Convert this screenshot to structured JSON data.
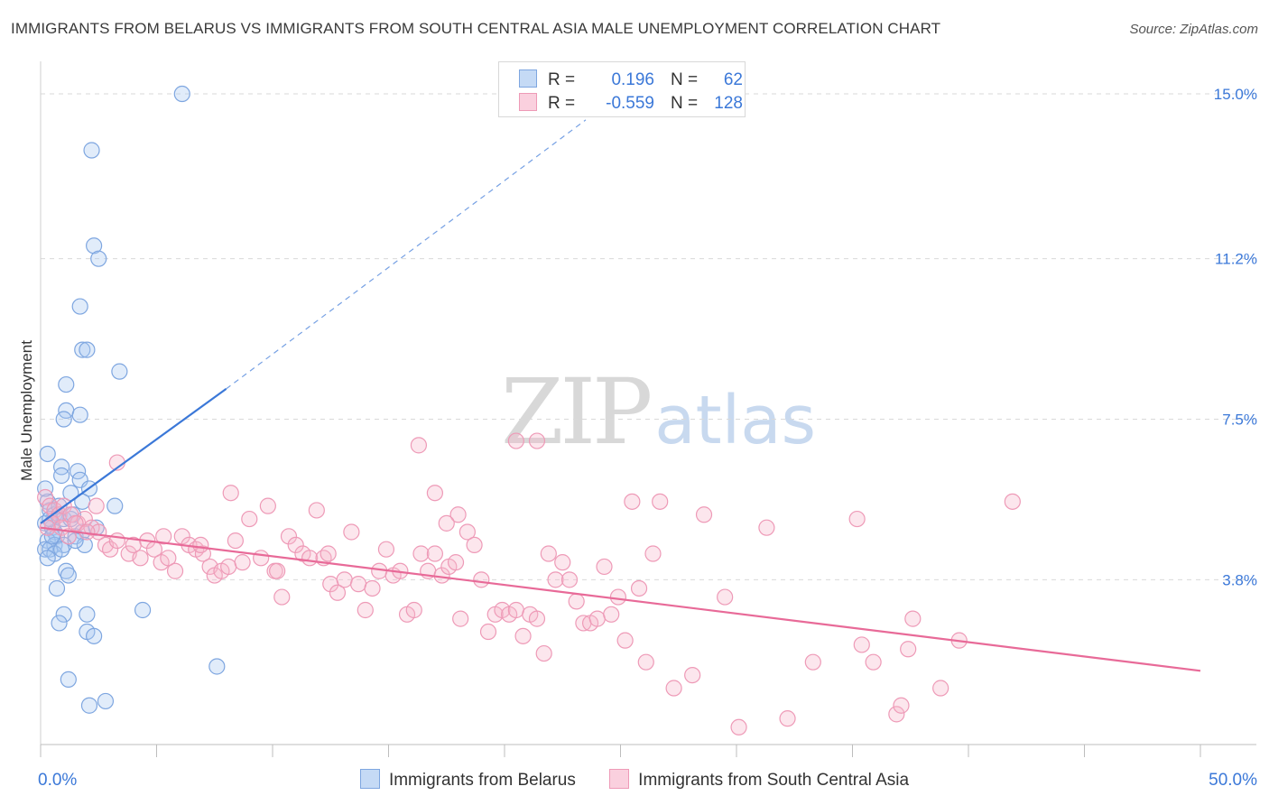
{
  "title": "IMMIGRANTS FROM BELARUS VS IMMIGRANTS FROM SOUTH CENTRAL ASIA MALE UNEMPLOYMENT CORRELATION CHART",
  "source": "Source: ZipAtlas.com",
  "watermark": {
    "zip": "ZIP",
    "atlas": "atlas"
  },
  "legend_top": [
    {
      "r_label": "R =",
      "r_value": "0.196",
      "n_label": "N =",
      "n_value": "62"
    },
    {
      "r_label": "R =",
      "r_value": "-0.559",
      "n_label": "N =",
      "n_value": "128"
    }
  ],
  "legend_bottom": [
    "Immigrants from Belarus",
    "Immigrants from South Central Asia"
  ],
  "colors": {
    "blue": "#3b78d8",
    "blue_fill": "#aac8f0",
    "pink": "#e86a98",
    "pink_fill": "#f7b8cc",
    "grid": "#d9d9d9",
    "tick_label": "#3b78d8"
  },
  "chart_data": {
    "type": "scatter",
    "title": "IMMIGRANTS FROM BELARUS VS IMMIGRANTS FROM SOUTH CENTRAL ASIA MALE UNEMPLOYMENT CORRELATION CHART",
    "xlabel": "",
    "ylabel": "Male Unemployment",
    "xlim": [
      0,
      50
    ],
    "ylim": [
      0,
      15.5
    ],
    "x_tick_labels": [
      "0.0%",
      "50.0%"
    ],
    "y_ticks": [
      3.8,
      7.5,
      11.2,
      15.0
    ],
    "y_tick_labels": [
      "3.8%",
      "7.5%",
      "11.2%",
      "15.0%"
    ],
    "series": [
      {
        "name": "Immigrants from Belarus",
        "color": "blue",
        "r": 0.196,
        "n": 62,
        "trend": {
          "solid": [
            [
              0,
              5.1
            ],
            [
              8,
              8.2
            ]
          ],
          "dashed": [
            [
              8,
              8.2
            ],
            [
              23.5,
              14.4
            ]
          ]
        },
        "points": [
          [
            6.1,
            15.0
          ],
          [
            2.2,
            13.7
          ],
          [
            2.3,
            11.5
          ],
          [
            2.5,
            11.2
          ],
          [
            1.7,
            10.1
          ],
          [
            1.8,
            9.1
          ],
          [
            2.0,
            9.1
          ],
          [
            3.4,
            8.6
          ],
          [
            1.1,
            8.3
          ],
          [
            1.1,
            7.7
          ],
          [
            1.0,
            7.5
          ],
          [
            1.7,
            7.6
          ],
          [
            0.3,
            6.7
          ],
          [
            0.9,
            6.4
          ],
          [
            0.9,
            6.2
          ],
          [
            1.6,
            6.3
          ],
          [
            1.7,
            6.1
          ],
          [
            2.1,
            5.9
          ],
          [
            1.3,
            5.8
          ],
          [
            1.8,
            5.6
          ],
          [
            3.2,
            5.5
          ],
          [
            0.3,
            5.6
          ],
          [
            0.4,
            5.4
          ],
          [
            0.6,
            5.3
          ],
          [
            0.8,
            5.3
          ],
          [
            1.0,
            5.2
          ],
          [
            1.3,
            5.2
          ],
          [
            0.5,
            5.0
          ],
          [
            0.2,
            5.1
          ],
          [
            0.6,
            4.9
          ],
          [
            0.7,
            4.8
          ],
          [
            1.5,
            4.8
          ],
          [
            1.8,
            4.9
          ],
          [
            0.3,
            4.7
          ],
          [
            0.6,
            4.6
          ],
          [
            1.0,
            4.6
          ],
          [
            1.9,
            4.6
          ],
          [
            0.2,
            4.5
          ],
          [
            0.4,
            4.5
          ],
          [
            0.6,
            4.4
          ],
          [
            0.9,
            4.5
          ],
          [
            0.3,
            4.3
          ],
          [
            1.5,
            4.7
          ],
          [
            1.1,
            4.0
          ],
          [
            1.2,
            3.9
          ],
          [
            0.7,
            3.6
          ],
          [
            1.0,
            3.0
          ],
          [
            2.0,
            3.0
          ],
          [
            0.8,
            2.8
          ],
          [
            2.0,
            2.6
          ],
          [
            2.3,
            2.5
          ],
          [
            4.4,
            3.1
          ],
          [
            7.6,
            1.8
          ],
          [
            1.2,
            1.5
          ],
          [
            2.8,
            1.0
          ],
          [
            2.1,
            0.9
          ],
          [
            0.4,
            5.2
          ],
          [
            0.5,
            4.8
          ],
          [
            1.4,
            5.3
          ],
          [
            0.8,
            5.5
          ],
          [
            2.4,
            5.0
          ],
          [
            0.2,
            5.9
          ]
        ]
      },
      {
        "name": "Immigrants from South Central Asia",
        "color": "pink",
        "r": -0.559,
        "n": 128,
        "trend": {
          "solid": [
            [
              0,
              5.0
            ],
            [
              50,
              1.7
            ]
          ]
        },
        "points": [
          [
            0.2,
            5.7
          ],
          [
            0.4,
            5.5
          ],
          [
            0.6,
            5.4
          ],
          [
            0.8,
            5.3
          ],
          [
            1.0,
            5.5
          ],
          [
            1.3,
            5.3
          ],
          [
            1.6,
            5.1
          ],
          [
            1.9,
            5.2
          ],
          [
            2.2,
            5.0
          ],
          [
            2.5,
            4.9
          ],
          [
            0.5,
            5.1
          ],
          [
            0.9,
            5.0
          ],
          [
            1.2,
            4.8
          ],
          [
            3.3,
            6.5
          ],
          [
            2.4,
            5.5
          ],
          [
            2.8,
            4.6
          ],
          [
            3.0,
            4.5
          ],
          [
            3.3,
            4.7
          ],
          [
            3.8,
            4.4
          ],
          [
            4.0,
            4.6
          ],
          [
            4.3,
            4.3
          ],
          [
            4.6,
            4.7
          ],
          [
            4.9,
            4.5
          ],
          [
            5.2,
            4.2
          ],
          [
            5.5,
            4.3
          ],
          [
            5.8,
            4.0
          ],
          [
            6.1,
            4.8
          ],
          [
            6.4,
            4.6
          ],
          [
            6.7,
            4.5
          ],
          [
            7.0,
            4.4
          ],
          [
            7.3,
            4.1
          ],
          [
            7.5,
            3.9
          ],
          [
            7.8,
            4.0
          ],
          [
            8.1,
            4.1
          ],
          [
            8.4,
            4.7
          ],
          [
            8.7,
            4.2
          ],
          [
            9.0,
            5.2
          ],
          [
            9.5,
            4.3
          ],
          [
            9.8,
            5.5
          ],
          [
            10.1,
            4.0
          ],
          [
            10.4,
            3.4
          ],
          [
            10.7,
            4.8
          ],
          [
            11.0,
            4.6
          ],
          [
            11.3,
            4.4
          ],
          [
            11.6,
            4.3
          ],
          [
            11.9,
            5.4
          ],
          [
            12.2,
            4.3
          ],
          [
            12.5,
            3.7
          ],
          [
            12.8,
            3.5
          ],
          [
            13.1,
            3.8
          ],
          [
            13.4,
            4.9
          ],
          [
            13.7,
            3.7
          ],
          [
            14.0,
            3.1
          ],
          [
            14.3,
            3.6
          ],
          [
            14.6,
            4.0
          ],
          [
            14.9,
            4.5
          ],
          [
            15.2,
            3.9
          ],
          [
            15.5,
            4.0
          ],
          [
            15.8,
            3.0
          ],
          [
            16.1,
            3.1
          ],
          [
            16.4,
            4.4
          ],
          [
            16.7,
            4.0
          ],
          [
            17.0,
            4.4
          ],
          [
            17.3,
            3.9
          ],
          [
            17.6,
            4.1
          ],
          [
            17.9,
            4.2
          ],
          [
            18.1,
            2.9
          ],
          [
            18.4,
            4.9
          ],
          [
            18.7,
            4.6
          ],
          [
            19.0,
            3.8
          ],
          [
            19.3,
            2.6
          ],
          [
            19.6,
            3.0
          ],
          [
            19.9,
            3.1
          ],
          [
            20.2,
            3.0
          ],
          [
            20.5,
            3.1
          ],
          [
            20.8,
            2.5
          ],
          [
            21.1,
            3.0
          ],
          [
            21.4,
            2.9
          ],
          [
            21.7,
            2.1
          ],
          [
            21.9,
            4.4
          ],
          [
            22.2,
            3.8
          ],
          [
            22.5,
            4.2
          ],
          [
            22.8,
            3.8
          ],
          [
            23.1,
            3.3
          ],
          [
            23.4,
            2.8
          ],
          [
            23.7,
            2.8
          ],
          [
            24.0,
            2.9
          ],
          [
            24.3,
            4.1
          ],
          [
            24.6,
            3.0
          ],
          [
            24.9,
            3.4
          ],
          [
            25.2,
            2.4
          ],
          [
            25.5,
            5.6
          ],
          [
            25.8,
            3.6
          ],
          [
            26.1,
            1.9
          ],
          [
            26.4,
            4.4
          ],
          [
            26.7,
            5.6
          ],
          [
            27.3,
            1.3
          ],
          [
            28.1,
            1.6
          ],
          [
            28.6,
            5.3
          ],
          [
            29.5,
            3.4
          ],
          [
            30.1,
            0.4
          ],
          [
            31.3,
            5.0
          ],
          [
            32.2,
            0.6
          ],
          [
            33.3,
            1.9
          ],
          [
            35.2,
            5.2
          ],
          [
            35.4,
            2.3
          ],
          [
            35.9,
            1.9
          ],
          [
            36.9,
            0.7
          ],
          [
            37.1,
            0.9
          ],
          [
            37.4,
            2.2
          ],
          [
            37.6,
            2.9
          ],
          [
            38.8,
            1.3
          ],
          [
            39.6,
            2.4
          ],
          [
            41.9,
            5.6
          ],
          [
            16.3,
            6.9
          ],
          [
            20.5,
            7.0
          ],
          [
            21.4,
            7.0
          ],
          [
            8.2,
            5.8
          ],
          [
            17.0,
            5.8
          ],
          [
            10.2,
            4.0
          ],
          [
            12.4,
            4.4
          ],
          [
            5.3,
            4.8
          ],
          [
            6.9,
            4.6
          ],
          [
            18.0,
            5.3
          ],
          [
            17.5,
            5.1
          ],
          [
            0.3,
            5.0
          ],
          [
            1.5,
            5.1
          ],
          [
            2.0,
            4.9
          ]
        ]
      }
    ]
  }
}
